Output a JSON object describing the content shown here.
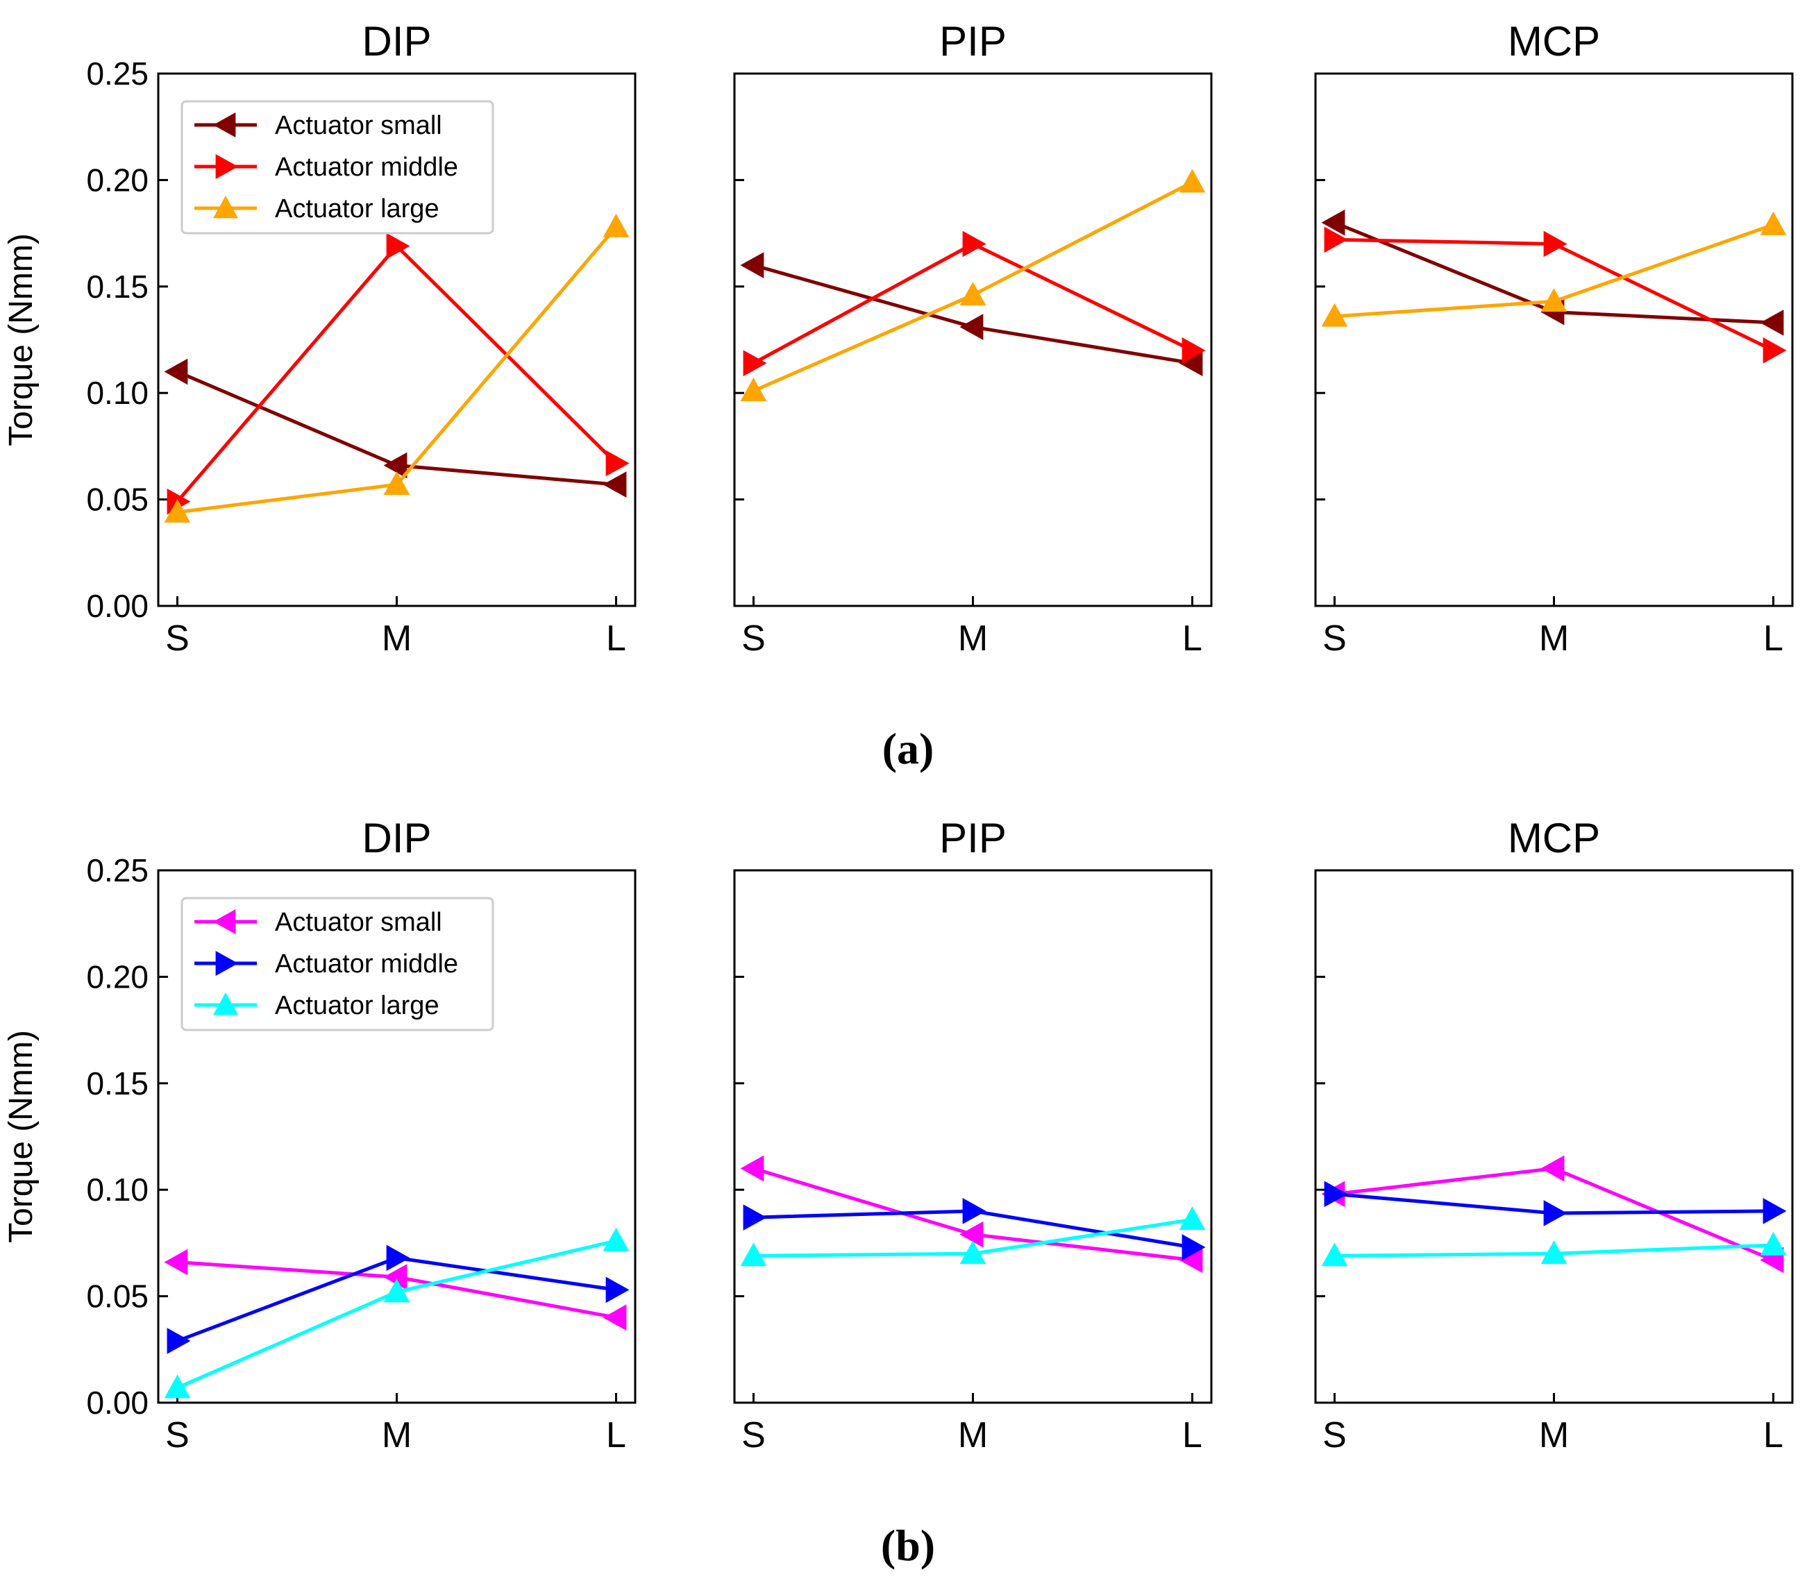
{
  "captions": [
    "(a)",
    "(b)"
  ],
  "ylabel": "Torque (Nmm)",
  "legend_labels": [
    "Actuator small",
    "Actuator middle",
    "Actuator large"
  ],
  "chart_data": [
    {
      "type": "line",
      "panel": "a",
      "title": "DIP",
      "categories": [
        "S",
        "M",
        "L"
      ],
      "ylim": [
        0,
        0.25
      ],
      "yticks": [
        "0.00",
        "0.05",
        "0.10",
        "0.15",
        "0.20",
        "0.25"
      ],
      "ylabel": "Torque (Nmm)",
      "legend": "top-left",
      "series": [
        {
          "name": "Actuator small",
          "color": "#800000",
          "marker": "left-triangle",
          "values": [
            0.11,
            0.066,
            0.057
          ]
        },
        {
          "name": "Actuator middle",
          "color": "#ff0000",
          "marker": "right-triangle",
          "values": [
            0.049,
            0.169,
            0.067
          ]
        },
        {
          "name": "Actuator large",
          "color": "#ffa500",
          "marker": "up-triangle",
          "values": [
            0.044,
            0.057,
            0.178
          ]
        }
      ]
    },
    {
      "type": "line",
      "panel": "a",
      "title": "PIP",
      "categories": [
        "S",
        "M",
        "L"
      ],
      "ylim": [
        0,
        0.25
      ],
      "series": [
        {
          "name": "Actuator small",
          "color": "#800000",
          "marker": "left-triangle",
          "values": [
            0.16,
            0.131,
            0.114
          ]
        },
        {
          "name": "Actuator middle",
          "color": "#ff0000",
          "marker": "right-triangle",
          "values": [
            0.114,
            0.17,
            0.12
          ]
        },
        {
          "name": "Actuator large",
          "color": "#ffa500",
          "marker": "up-triangle",
          "values": [
            0.101,
            0.146,
            0.199
          ]
        }
      ]
    },
    {
      "type": "line",
      "panel": "a",
      "title": "MCP",
      "categories": [
        "S",
        "M",
        "L"
      ],
      "ylim": [
        0,
        0.25
      ],
      "series": [
        {
          "name": "Actuator small",
          "color": "#800000",
          "marker": "left-triangle",
          "values": [
            0.18,
            0.138,
            0.133
          ]
        },
        {
          "name": "Actuator middle",
          "color": "#ff0000",
          "marker": "right-triangle",
          "values": [
            0.172,
            0.17,
            0.12
          ]
        },
        {
          "name": "Actuator large",
          "color": "#ffa500",
          "marker": "up-triangle",
          "values": [
            0.136,
            0.143,
            0.179
          ]
        }
      ]
    },
    {
      "type": "line",
      "panel": "b",
      "title": "DIP",
      "categories": [
        "S",
        "M",
        "L"
      ],
      "ylim": [
        0,
        0.25
      ],
      "yticks": [
        "0.00",
        "0.05",
        "0.10",
        "0.15",
        "0.20",
        "0.25"
      ],
      "ylabel": "Torque (Nmm)",
      "legend": "top-left",
      "series": [
        {
          "name": "Actuator small",
          "color": "#ff00ff",
          "marker": "left-triangle",
          "values": [
            0.066,
            0.059,
            0.04
          ]
        },
        {
          "name": "Actuator middle",
          "color": "#0000ff",
          "marker": "right-triangle",
          "values": [
            0.029,
            0.068,
            0.053
          ]
        },
        {
          "name": "Actuator large",
          "color": "#00ffff",
          "marker": "up-triangle",
          "values": [
            0.007,
            0.052,
            0.076
          ]
        }
      ]
    },
    {
      "type": "line",
      "panel": "b",
      "title": "PIP",
      "categories": [
        "S",
        "M",
        "L"
      ],
      "ylim": [
        0,
        0.25
      ],
      "series": [
        {
          "name": "Actuator small",
          "color": "#ff00ff",
          "marker": "left-triangle",
          "values": [
            0.11,
            0.079,
            0.067
          ]
        },
        {
          "name": "Actuator middle",
          "color": "#0000ff",
          "marker": "right-triangle",
          "values": [
            0.087,
            0.09,
            0.073
          ]
        },
        {
          "name": "Actuator large",
          "color": "#00ffff",
          "marker": "up-triangle",
          "values": [
            0.069,
            0.07,
            0.086
          ]
        }
      ]
    },
    {
      "type": "line",
      "panel": "b",
      "title": "MCP",
      "categories": [
        "S",
        "M",
        "L"
      ],
      "ylim": [
        0,
        0.25
      ],
      "series": [
        {
          "name": "Actuator small",
          "color": "#ff00ff",
          "marker": "left-triangle",
          "values": [
            0.098,
            0.11,
            0.067
          ]
        },
        {
          "name": "Actuator middle",
          "color": "#0000ff",
          "marker": "right-triangle",
          "values": [
            0.098,
            0.089,
            0.09
          ]
        },
        {
          "name": "Actuator large",
          "color": "#00ffff",
          "marker": "up-triangle",
          "values": [
            0.069,
            0.07,
            0.074
          ]
        }
      ]
    }
  ]
}
